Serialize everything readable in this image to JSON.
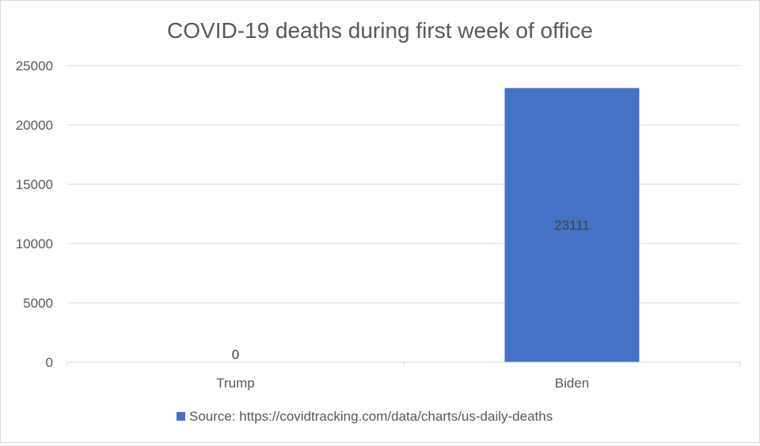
{
  "chart_data": {
    "type": "bar",
    "title": "COVID-19 deaths during first week of office",
    "categories": [
      "Trump",
      "Biden"
    ],
    "series": [
      {
        "name": "Source: https://covidtracking.com/data/charts/us-daily-deaths",
        "values": [
          0,
          23111
        ]
      }
    ],
    "data_labels": [
      "0",
      "23111"
    ],
    "ylim": [
      0,
      25000
    ],
    "yticks": [
      0,
      5000,
      10000,
      15000,
      20000,
      25000
    ],
    "grid": true,
    "legend": "bottom",
    "xlabel": "",
    "ylabel": ""
  },
  "colors": {
    "bar": "#4472c4",
    "grid": "#d9d9d9",
    "text": "#595959",
    "title": "#595959",
    "label": "#404040"
  }
}
